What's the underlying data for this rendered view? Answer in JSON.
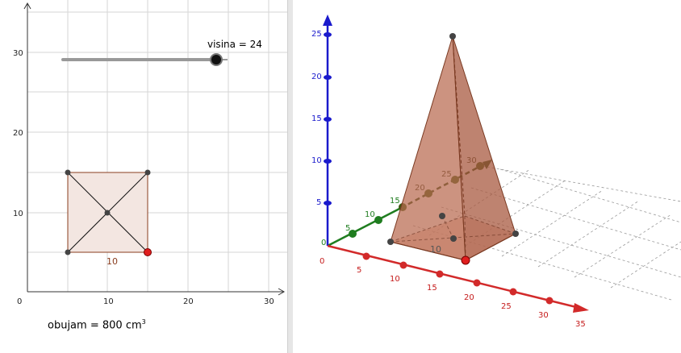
{
  "graphics2d": {
    "x_ticks": [
      "0",
      "10",
      "20",
      "30"
    ],
    "y_ticks": [
      "10",
      "20",
      "30"
    ],
    "slider_label": "visina = 24",
    "slider": {
      "name": "visina",
      "value": 24,
      "min": 0,
      "max": 25
    },
    "square": {
      "side_label": "10",
      "corners": [
        [
          5,
          5
        ],
        [
          15,
          5
        ],
        [
          15,
          15
        ],
        [
          5,
          15
        ]
      ],
      "center": [
        10,
        10
      ]
    },
    "volume_label": "obujam",
    "volume_eq": "=",
    "volume_value": "800 cm",
    "volume_exp": "3"
  },
  "graphics3d": {
    "x_axis": {
      "color": "#d22a2a",
      "ticks": [
        "0",
        "5",
        "10",
        "15",
        "20",
        "25",
        "30",
        "35"
      ]
    },
    "y_axis": {
      "color": "#1f7d1f",
      "ticks": [
        "0",
        "5",
        "10",
        "15",
        "20",
        "25",
        "30"
      ]
    },
    "z_axis": {
      "color": "#1a1acc",
      "ticks": [
        "5",
        "10",
        "15",
        "20",
        "25"
      ]
    },
    "edge_label": "10",
    "pyramid_color": "#b86a4f"
  }
}
